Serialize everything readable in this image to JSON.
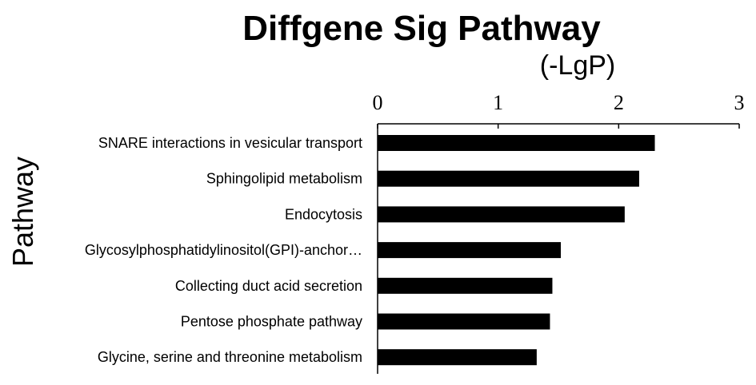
{
  "chart_data": {
    "type": "bar",
    "orientation": "horizontal",
    "title": "Diffgene Sig Pathway",
    "xlabel": "(-LgP)",
    "ylabel": "Pathway",
    "xlim": [
      0,
      3
    ],
    "xticks": [
      "0",
      "1",
      "2",
      "3"
    ],
    "x_axis_position": "top",
    "categories": [
      "SNARE interactions in vesicular transport",
      "Sphingolipid metabolism",
      "Endocytosis",
      "Glycosylphosphatidylinositol(GPI)-anchor…",
      "Collecting duct acid secretion",
      "Pentose phosphate pathway",
      "Glycine, serine and threonine metabolism"
    ],
    "values": [
      2.3,
      2.17,
      2.05,
      1.52,
      1.45,
      1.43,
      1.32
    ],
    "bar_color": "#000000",
    "grid": false,
    "legend": "none"
  }
}
